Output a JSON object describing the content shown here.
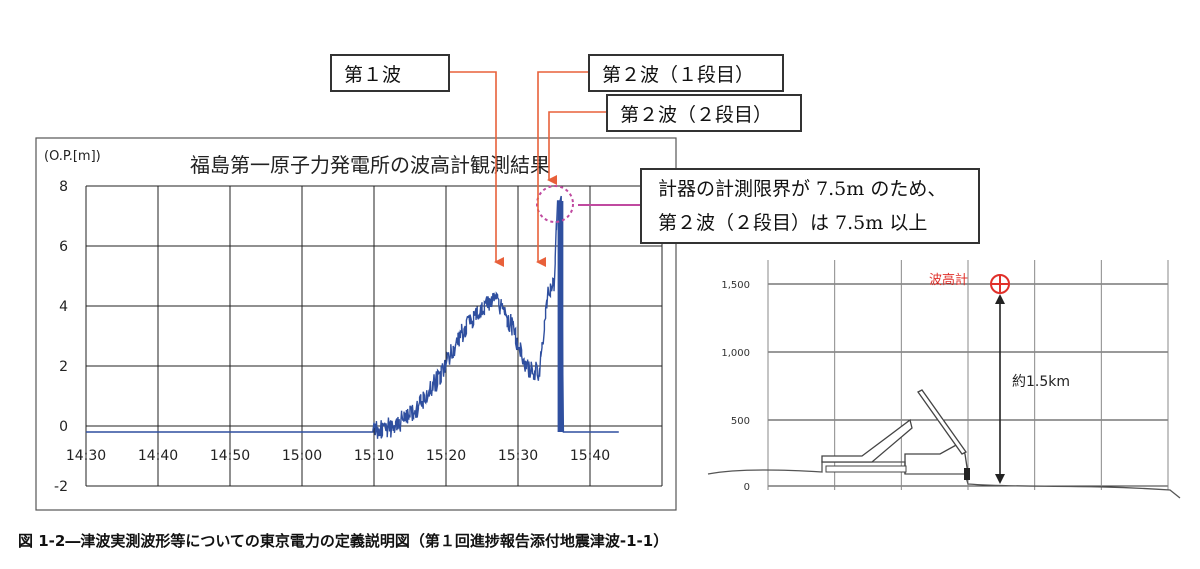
{
  "callouts": {
    "wave1": "第１波",
    "wave2_stage1": "第２波（１段目）",
    "wave2_stage2": "第２波（２段目）",
    "note_line1": "計器の計測限界が 7.5m のため、",
    "note_line2": "第２波（２段目）は 7.5m 以上"
  },
  "chart_data": [
    {
      "type": "line",
      "title": "福島第一原子力発電所の波高計観測結果",
      "ylabel": "(O.P.[m])",
      "xlabel": "",
      "x_ticks": [
        "14:30",
        "14:40",
        "14:50",
        "15:00",
        "15:10",
        "15:20",
        "15:30",
        "15:40"
      ],
      "y_ticks": [
        8,
        6,
        4,
        2,
        0,
        -2
      ],
      "ylim": [
        -2,
        8
      ],
      "grid": true,
      "line_color": "#2f4f9f",
      "series": [
        {
          "x": [
            "14:30",
            "14:40",
            "14:50",
            "15:00",
            "15:10",
            "15:13",
            "15:16",
            "15:19",
            "15:22",
            "15:25",
            "15:27",
            "15:29",
            "15:31",
            "15:33",
            "15:34",
            "15:35",
            "15:35.5",
            "15:36",
            "15:36.3",
            "15:37",
            "15:40",
            "15:44"
          ],
          "values": [
            -0.2,
            -0.2,
            -0.2,
            -0.2,
            -0.2,
            0.0,
            0.6,
            1.6,
            3.0,
            4.0,
            4.2,
            3.4,
            2.0,
            1.8,
            4.2,
            4.8,
            7.5,
            7.5,
            -0.2,
            -0.2,
            -0.2,
            -0.2
          ]
        }
      ]
    },
    {
      "type": "diagram",
      "y_ticks": [
        "1,500",
        "1,000",
        "500",
        "0"
      ],
      "gauge_label": "波高計",
      "distance_label": "約1.5km",
      "gauge_color": "#e0302a"
    }
  ],
  "caption": "図 1-2―津波実測波形等についての東京電力の定義説明図（第１回進捗報告添付地震津波-1-1）"
}
